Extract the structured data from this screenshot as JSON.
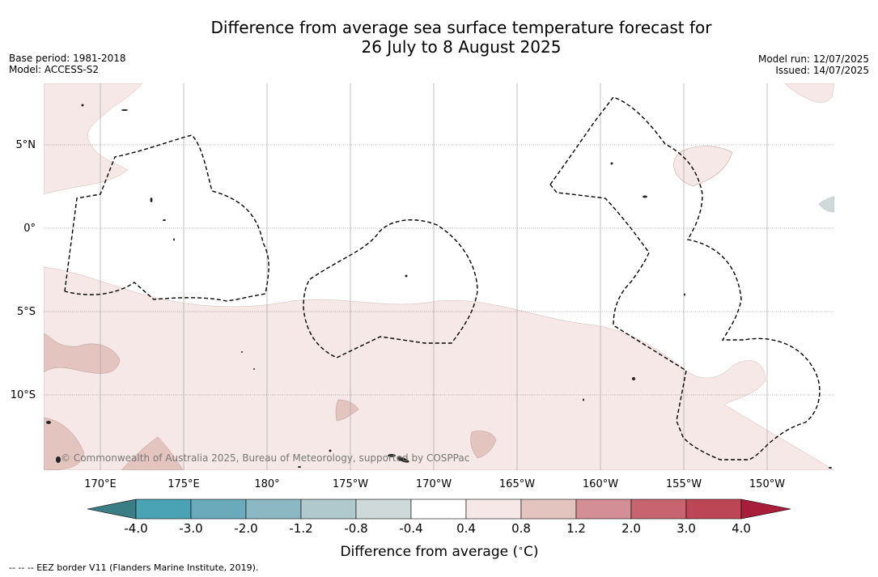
{
  "title_line1": "Difference from average sea surface temperature forecast for",
  "title_line2": "26 July to 8 August 2025",
  "base_period": "Base period: 1981-2018",
  "model": "Model: ACCESS-S2",
  "model_run": "Model run: 12/07/2025",
  "issued": "Issued: 14/07/2025",
  "lat_labels": [
    "5°N",
    "0°",
    "5°S",
    "10°S"
  ],
  "lon_labels": [
    "170°E",
    "175°E",
    "180°",
    "175°W",
    "170°W",
    "165°W",
    "160°W",
    "155°W",
    "150°W"
  ],
  "colorbar": {
    "title": "Difference from average (°C)",
    "tick_labels": [
      "-4.0",
      "-3.0",
      "-2.0",
      "-1.2",
      "-0.8",
      "-0.4",
      "0.4",
      "0.8",
      "1.2",
      "2.0",
      "3.0",
      "4.0"
    ],
    "colors": [
      "#3a7d84",
      "#4aa3b5",
      "#6baabb",
      "#8cb8c3",
      "#afc9cd",
      "#cfd9da",
      "#ffffff",
      "#f5e8e6",
      "#e4c4bf",
      "#d48e95",
      "#c8646f",
      "#bd4656",
      "#a81e3a"
    ]
  },
  "credit": "© Commonwealth of Australia 2025, Bureau of Meteorology, supported by COSPPac",
  "footer": "-- -- -- EEZ border V11 (Flanders Marine Institute, 2019)."
}
